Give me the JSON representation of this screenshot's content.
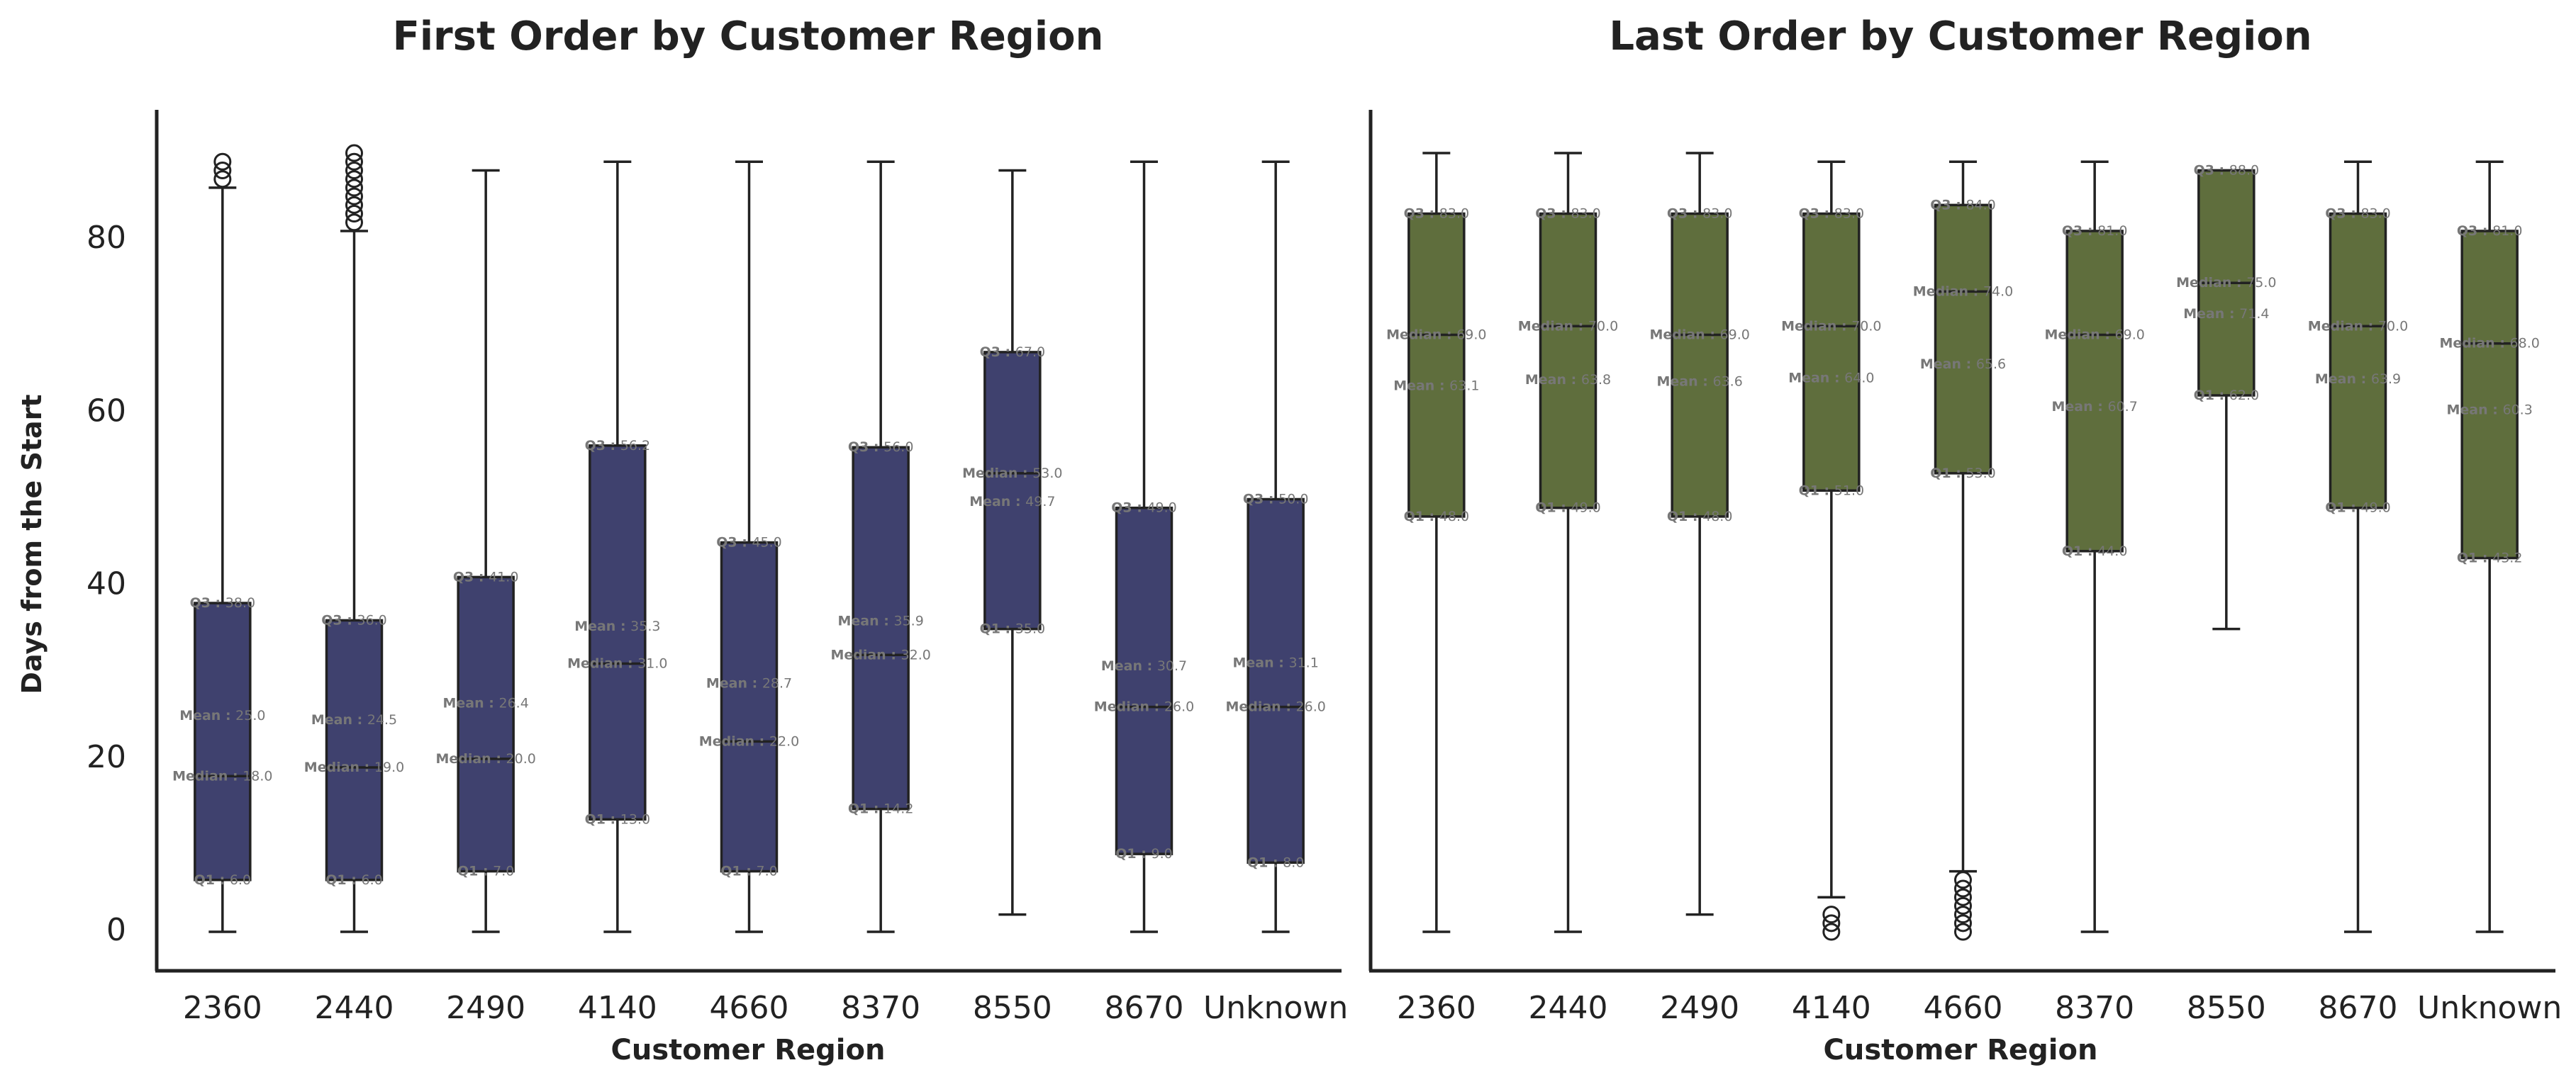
{
  "chart_data": [
    {
      "type": "box",
      "title": "First Order by Customer Region",
      "xlabel": "Customer Region",
      "ylabel": "Days from the Start",
      "categories": [
        "2360",
        "2440",
        "2490",
        "4140",
        "4660",
        "8370",
        "8550",
        "8670",
        "Unknown"
      ],
      "yticks": [
        0,
        20,
        40,
        60,
        80
      ],
      "ylim": [
        -4.5,
        95
      ],
      "color": "#3f416e",
      "boxes": [
        {
          "q1": 6.0,
          "median": 18.0,
          "mean": 25.0,
          "q3": 38.0,
          "whislo": 0,
          "whishi": 86,
          "outliers": [
            87,
            88,
            89
          ]
        },
        {
          "q1": 6.0,
          "median": 19.0,
          "mean": 24.5,
          "q3": 36.0,
          "whislo": 0,
          "whishi": 81,
          "outliers": [
            82,
            83,
            84,
            85,
            86,
            87,
            88,
            89,
            90
          ]
        },
        {
          "q1": 7.0,
          "median": 20.0,
          "mean": 26.4,
          "q3": 41.0,
          "whislo": 0,
          "whishi": 88,
          "outliers": []
        },
        {
          "q1": 13.0,
          "median": 31.0,
          "mean": 35.3,
          "q3": 56.2,
          "whislo": 0,
          "whishi": 89,
          "outliers": []
        },
        {
          "q1": 7.0,
          "median": 22.0,
          "mean": 28.7,
          "q3": 45.0,
          "whislo": 0,
          "whishi": 89,
          "outliers": []
        },
        {
          "q1": 14.2,
          "median": 32.0,
          "mean": 35.9,
          "q3": 56.0,
          "whislo": 0,
          "whishi": 89,
          "outliers": []
        },
        {
          "q1": 35.0,
          "median": 53.0,
          "mean": 49.7,
          "q3": 67.0,
          "whislo": 2,
          "whishi": 88,
          "outliers": []
        },
        {
          "q1": 9.0,
          "median": 26.0,
          "mean": 30.7,
          "q3": 49.0,
          "whislo": 0,
          "whishi": 89,
          "outliers": []
        },
        {
          "q1": 8.0,
          "median": 26.0,
          "mean": 31.1,
          "q3": 50.0,
          "whislo": 0,
          "whishi": 89,
          "outliers": []
        }
      ]
    },
    {
      "type": "box",
      "title": "Last Order by Customer Region",
      "xlabel": "Customer Region",
      "categories": [
        "2360",
        "2440",
        "2490",
        "4140",
        "4660",
        "8370",
        "8550",
        "8670",
        "Unknown"
      ],
      "ylim": [
        -4.5,
        95
      ],
      "color": "#5f6e3d",
      "boxes": [
        {
          "q1": 48.0,
          "median": 69.0,
          "mean": 63.1,
          "q3": 83.0,
          "whislo": 0,
          "whishi": 90,
          "outliers": []
        },
        {
          "q1": 49.0,
          "median": 70.0,
          "mean": 63.8,
          "q3": 83.0,
          "whislo": 0,
          "whishi": 90,
          "outliers": []
        },
        {
          "q1": 48.0,
          "median": 69.0,
          "mean": 63.6,
          "q3": 83.0,
          "whislo": 2,
          "whishi": 90,
          "outliers": []
        },
        {
          "q1": 51.0,
          "median": 70.0,
          "mean": 64.0,
          "q3": 83.0,
          "whislo": 4,
          "whishi": 89,
          "outliers": [
            0,
            1,
            2
          ]
        },
        {
          "q1": 53.0,
          "median": 74.0,
          "mean": 65.6,
          "q3": 84.0,
          "whislo": 7,
          "whishi": 89,
          "outliers": [
            0,
            1,
            2,
            3,
            4,
            5,
            6
          ]
        },
        {
          "q1": 44.0,
          "median": 69.0,
          "mean": 60.7,
          "q3": 81.0,
          "whislo": 0,
          "whishi": 89,
          "outliers": []
        },
        {
          "q1": 62.0,
          "median": 75.0,
          "mean": 71.4,
          "q3": 88.0,
          "whislo": 35,
          "whishi": 88,
          "outliers": []
        },
        {
          "q1": 49.0,
          "median": 70.0,
          "mean": 63.9,
          "q3": 83.0,
          "whislo": 0,
          "whishi": 89,
          "outliers": []
        },
        {
          "q1": 43.2,
          "median": 68.0,
          "mean": 60.3,
          "q3": 81.0,
          "whislo": 0,
          "whishi": 89,
          "outliers": []
        }
      ]
    }
  ],
  "annotation_labels": {
    "q3": "Q3 :",
    "median": "Median :",
    "mean": "Mean :",
    "q1": "Q1 :"
  }
}
